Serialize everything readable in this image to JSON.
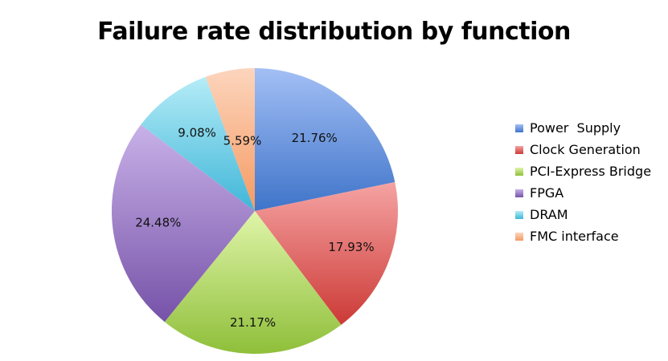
{
  "chart_data": {
    "type": "pie",
    "title": "Failure rate distribution by function",
    "categories": [
      "Power  Supply",
      "Clock Generation",
      "PCI-Express Bridge",
      "FPGA",
      "DRAM",
      "FMC interface"
    ],
    "values": [
      21.76,
      17.93,
      21.17,
      24.48,
      9.08,
      5.59
    ],
    "data_labels": [
      "21.76%",
      "17.93%",
      "21.17%",
      "24.48%",
      "9.08%",
      "5.59%"
    ],
    "colors": [
      [
        "#a3bff5",
        "#3f74c9"
      ],
      [
        "#f5a3a3",
        "#cc3a36"
      ],
      [
        "#dff5a9",
        "#8fbf3a"
      ],
      [
        "#c8b1e8",
        "#7652a8"
      ],
      [
        "#b5ecf7",
        "#3fb6d8"
      ],
      [
        "#fcd5bd",
        "#f59a62"
      ]
    ],
    "legend": "right",
    "start_angle": "12 o'clock",
    "direction": "clockwise"
  }
}
